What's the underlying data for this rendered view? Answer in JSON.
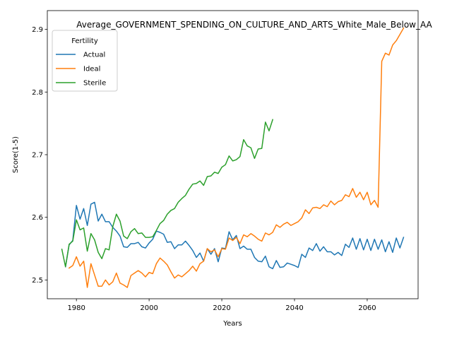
{
  "chart_data": {
    "type": "line",
    "title": "Average_GOVERNMENT_SPENDING_ON_CULTURE_AND_ARTS_White_Male_Below_AA",
    "xlabel": "Years",
    "ylabel": "Score(1-5)",
    "xlim": [
      1972,
      2074
    ],
    "ylim": [
      2.47,
      2.93
    ],
    "xticks": [
      1980,
      2000,
      2020,
      2040,
      2060
    ],
    "yticks": [
      2.5,
      2.6,
      2.7,
      2.8,
      2.9
    ],
    "ytick_labels": [
      "2.5",
      "2.6",
      "2.7",
      "2.8",
      "2.9"
    ],
    "grid": false,
    "legend": {
      "title": "Fertility",
      "placement": "upper-left"
    },
    "series": [
      {
        "name": "Actual",
        "color": "#1f77b4",
        "x": [
          1977,
          1978,
          1979,
          1980,
          1981,
          1982,
          1983,
          1984,
          1985,
          1986,
          1987,
          1988,
          1989,
          1990,
          1991,
          1992,
          1993,
          1994,
          1995,
          1996,
          1997,
          1998,
          1999,
          2000,
          2001,
          2002,
          2003,
          2004,
          2005,
          2006,
          2007,
          2008,
          2009,
          2010,
          2011,
          2012,
          2013,
          2014,
          2015,
          2016,
          2017,
          2018,
          2019,
          2020,
          2021,
          2022,
          2023,
          2024,
          2025,
          2026,
          2027,
          2028,
          2029,
          2030,
          2031,
          2032,
          2033,
          2034,
          2035,
          2036,
          2037,
          2038,
          2039,
          2040,
          2041,
          2042,
          2043,
          2044,
          2045,
          2046,
          2047,
          2048,
          2049,
          2050,
          2051,
          2052,
          2053,
          2054,
          2055,
          2056,
          2057,
          2058,
          2059,
          2060,
          2061,
          2062,
          2063,
          2064,
          2065,
          2066,
          2067,
          2068,
          2069,
          2070
        ],
        "values": [
          2.521,
          2.556,
          2.563,
          2.619,
          2.597,
          2.614,
          2.587,
          2.621,
          2.624,
          2.594,
          2.605,
          2.593,
          2.593,
          2.584,
          2.578,
          2.57,
          2.553,
          2.552,
          2.558,
          2.558,
          2.56,
          2.553,
          2.551,
          2.559,
          2.565,
          2.578,
          2.576,
          2.573,
          2.56,
          2.561,
          2.55,
          2.556,
          2.556,
          2.562,
          2.555,
          2.547,
          2.536,
          2.543,
          2.53,
          2.55,
          2.541,
          2.55,
          2.529,
          2.551,
          2.55,
          2.577,
          2.564,
          2.571,
          2.55,
          2.554,
          2.549,
          2.549,
          2.536,
          2.53,
          2.529,
          2.538,
          2.521,
          2.518,
          2.531,
          2.52,
          2.521,
          2.527,
          2.525,
          2.523,
          2.52,
          2.541,
          2.536,
          2.551,
          2.547,
          2.558,
          2.546,
          2.553,
          2.545,
          2.545,
          2.54,
          2.544,
          2.539,
          2.557,
          2.552,
          2.567,
          2.549,
          2.566,
          2.548,
          2.565,
          2.547,
          2.565,
          2.549,
          2.564,
          2.545,
          2.561,
          2.544,
          2.567,
          2.551,
          2.568
        ]
      },
      {
        "name": "Ideal",
        "color": "#ff7f0e",
        "x": [
          1978,
          1979,
          1980,
          1981,
          1982,
          1983,
          1984,
          1985,
          1986,
          1987,
          1988,
          1989,
          1990,
          1991,
          1992,
          1993,
          1994,
          1995,
          1996,
          1997,
          1998,
          1999,
          2000,
          2001,
          2002,
          2003,
          2004,
          2005,
          2006,
          2007,
          2008,
          2009,
          2010,
          2011,
          2012,
          2013,
          2014,
          2015,
          2016,
          2017,
          2018,
          2019,
          2020,
          2021,
          2022,
          2023,
          2024,
          2025,
          2026,
          2027,
          2028,
          2029,
          2030,
          2031,
          2032,
          2033,
          2034,
          2035,
          2036,
          2037,
          2038,
          2039,
          2040,
          2041,
          2042,
          2043,
          2044,
          2045,
          2046,
          2047,
          2048,
          2049,
          2050,
          2051,
          2052,
          2053,
          2054,
          2055,
          2056,
          2057,
          2058,
          2059,
          2060,
          2061,
          2062,
          2063,
          2064,
          2065,
          2066,
          2067,
          2068,
          2069,
          2070
        ],
        "values": [
          2.519,
          2.523,
          2.537,
          2.522,
          2.53,
          2.488,
          2.526,
          2.508,
          2.49,
          2.49,
          2.5,
          2.492,
          2.497,
          2.511,
          2.495,
          2.492,
          2.488,
          2.507,
          2.511,
          2.515,
          2.511,
          2.505,
          2.512,
          2.51,
          2.526,
          2.535,
          2.53,
          2.524,
          2.513,
          2.503,
          2.508,
          2.505,
          2.51,
          2.515,
          2.522,
          2.514,
          2.526,
          2.53,
          2.55,
          2.545,
          2.548,
          2.537,
          2.55,
          2.549,
          2.567,
          2.563,
          2.568,
          2.558,
          2.572,
          2.569,
          2.574,
          2.57,
          2.565,
          2.562,
          2.575,
          2.572,
          2.576,
          2.588,
          2.584,
          2.589,
          2.592,
          2.587,
          2.59,
          2.593,
          2.599,
          2.612,
          2.606,
          2.615,
          2.616,
          2.614,
          2.62,
          2.617,
          2.626,
          2.62,
          2.625,
          2.627,
          2.636,
          2.633,
          2.646,
          2.632,
          2.64,
          2.628,
          2.64,
          2.62,
          2.627,
          2.616,
          2.849,
          2.862,
          2.859,
          2.875,
          2.882,
          2.892,
          2.902
        ]
      },
      {
        "name": "Sterile",
        "color": "#2ca02c",
        "x": [
          1976,
          1977,
          1978,
          1979,
          1980,
          1981,
          1982,
          1983,
          1984,
          1985,
          1986,
          1987,
          1988,
          1989,
          1990,
          1991,
          1992,
          1993,
          1994,
          1995,
          1996,
          1997,
          1998,
          1999,
          2000,
          2001,
          2002,
          2003,
          2004,
          2005,
          2006,
          2007,
          2008,
          2009,
          2010,
          2011,
          2012,
          2013,
          2014,
          2015,
          2016,
          2017,
          2018,
          2019,
          2020,
          2021,
          2022,
          2023,
          2024,
          2025,
          2026,
          2027,
          2028,
          2029,
          2030,
          2031,
          2032,
          2033,
          2034
        ],
        "values": [
          2.549,
          2.521,
          2.557,
          2.562,
          2.596,
          2.58,
          2.583,
          2.546,
          2.574,
          2.564,
          2.544,
          2.534,
          2.55,
          2.548,
          2.585,
          2.605,
          2.594,
          2.57,
          2.566,
          2.577,
          2.582,
          2.574,
          2.575,
          2.568,
          2.568,
          2.569,
          2.579,
          2.59,
          2.595,
          2.605,
          2.611,
          2.614,
          2.624,
          2.63,
          2.635,
          2.645,
          2.653,
          2.654,
          2.658,
          2.651,
          2.665,
          2.666,
          2.672,
          2.67,
          2.68,
          2.684,
          2.698,
          2.69,
          2.692,
          2.697,
          2.724,
          2.714,
          2.711,
          2.694,
          2.709,
          2.71,
          2.752,
          2.738,
          2.756
        ]
      }
    ]
  }
}
